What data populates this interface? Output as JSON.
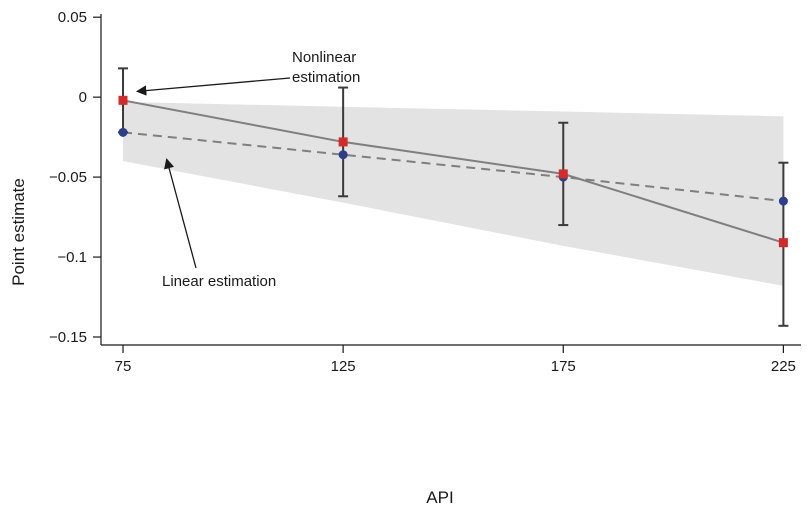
{
  "chart_data": {
    "type": "line",
    "title": "",
    "xlabel": "API",
    "ylabel": "Point estimate",
    "x": [
      75,
      125,
      175,
      225
    ],
    "x_ticks": [
      "75",
      "125",
      "175",
      "225"
    ],
    "y_ticks": [
      {
        "value": 0.05,
        "label": "0.05"
      },
      {
        "value": 0,
        "label": "0"
      },
      {
        "value": -0.05,
        "label": "−0.05"
      },
      {
        "value": -0.1,
        "label": "−0.1"
      },
      {
        "value": -0.15,
        "label": "−0.15"
      }
    ],
    "xlim": [
      70,
      229
    ],
    "ylim": [
      -0.155,
      0.052
    ],
    "grid": false,
    "legend": "none",
    "series": [
      {
        "key": "nonlinear",
        "values": [
          -0.002,
          -0.028,
          -0.048,
          -0.091
        ],
        "ci_low": [
          -0.022,
          -0.062,
          -0.08,
          -0.143
        ],
        "ci_high": [
          0.018,
          0.006,
          -0.016,
          -0.041
        ],
        "color": "#d42a2a",
        "line_color": "#7f7f7f",
        "marker": "square",
        "line_style": "solid"
      },
      {
        "key": "linear",
        "values": [
          -0.022,
          -0.036,
          -0.05,
          -0.065
        ],
        "band_low": [
          -0.04,
          -0.066,
          -0.093,
          -0.118
        ],
        "band_high": [
          -0.003,
          -0.006,
          -0.009,
          -0.012
        ],
        "color": "#2b3f8c",
        "line_color": "#7f7f7f",
        "band_color": "#e3e3e3",
        "marker": "circle",
        "line_style": "dashed"
      }
    ],
    "annotations": [
      {
        "key": "nonlinear",
        "lines": [
          "Nonlinear",
          "estimation"
        ],
        "points_to": {
          "x": 75,
          "y": -0.002
        }
      },
      {
        "key": "linear",
        "lines": [
          "Linear estimation"
        ],
        "points_to": {
          "x": 84,
          "y": -0.04
        }
      }
    ]
  }
}
